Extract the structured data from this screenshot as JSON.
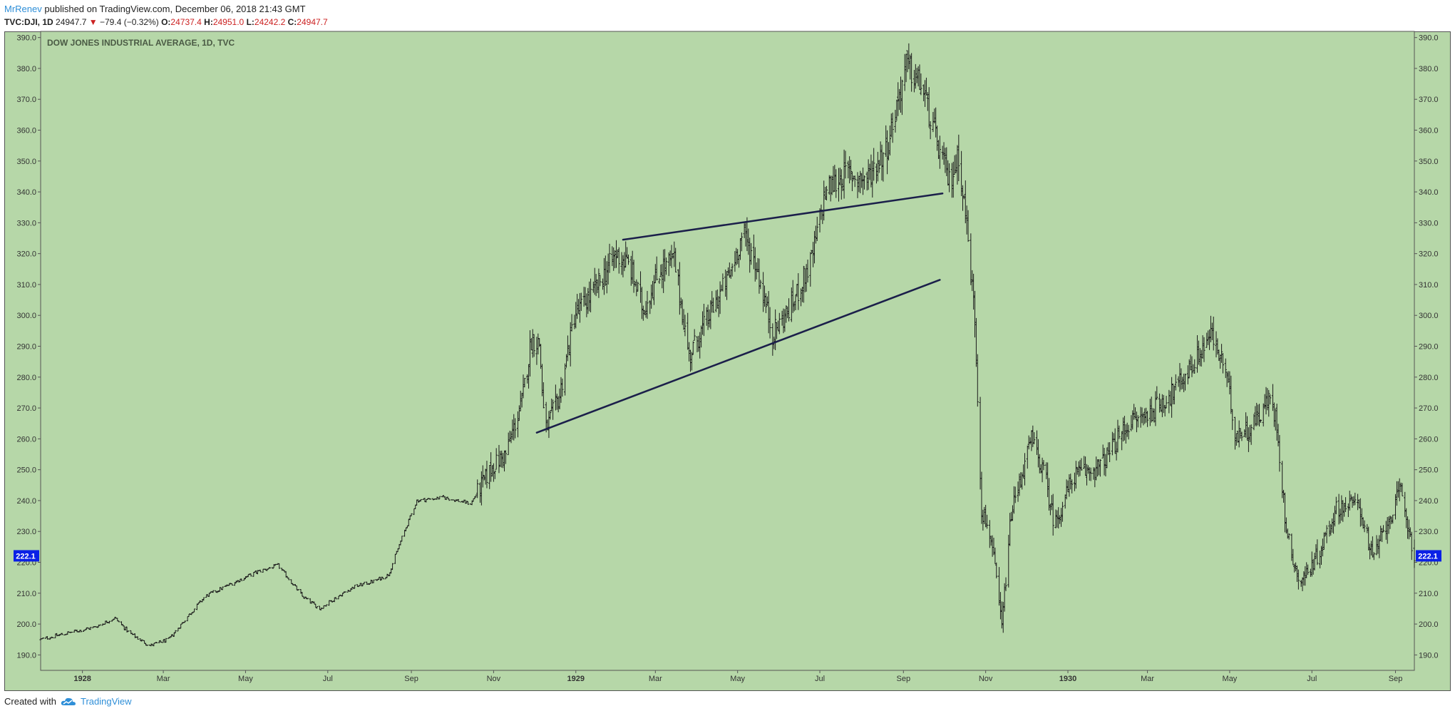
{
  "header": {
    "author": "MrRenev",
    "published_text": "published on TradingView.com, December 06, 2018 21:43 GMT",
    "symbol": "TVC:DJI, 1D",
    "last": "24947.7",
    "change": "−79.4 (−0.32%)",
    "o_label": "O:",
    "o_value": "24737.4",
    "h_label": "H:",
    "h_value": "24951.0",
    "l_label": "L:",
    "l_value": "24242.2",
    "c_label": "C:",
    "c_value": "24947.7"
  },
  "footer": {
    "created_with": "Created with",
    "brand": "TradingView"
  },
  "colors": {
    "plot_bg": "#b6d7a8",
    "bars": "#1a1a1a",
    "trendline": "#1b1f4a",
    "price_tag": "#0a20e6",
    "accent": "#2f8fd8",
    "down": "#cc2222"
  },
  "chart_data": {
    "type": "ohlc",
    "title": "DOW JONES INDUSTRIAL AVERAGE, 1D, TVC",
    "y_ticks": [
      "390.0",
      "380.0",
      "370.0",
      "360.0",
      "350.0",
      "340.0",
      "330.0",
      "320.0",
      "310.0",
      "300.0",
      "290.0",
      "280.0",
      "270.0",
      "260.0",
      "250.0",
      "240.0",
      "230.0",
      "220.0",
      "210.0",
      "200.0",
      "190.0"
    ],
    "y_range": [
      185,
      392
    ],
    "x_range": [
      "1927-12-01",
      "1930-09-15"
    ],
    "x_ticks": [
      {
        "label": "1928",
        "date": "1928-01-01",
        "bold": true
      },
      {
        "label": "Mar",
        "date": "1928-03-01"
      },
      {
        "label": "May",
        "date": "1928-05-01"
      },
      {
        "label": "Jul",
        "date": "1928-07-01"
      },
      {
        "label": "Sep",
        "date": "1928-09-01"
      },
      {
        "label": "Nov",
        "date": "1928-11-01"
      },
      {
        "label": "1929",
        "date": "1929-01-01",
        "bold": true
      },
      {
        "label": "Mar",
        "date": "1929-03-01"
      },
      {
        "label": "May",
        "date": "1929-05-01"
      },
      {
        "label": "Jul",
        "date": "1929-07-01"
      },
      {
        "label": "Sep",
        "date": "1929-09-01"
      },
      {
        "label": "Nov",
        "date": "1929-11-01"
      },
      {
        "label": "1930",
        "date": "1930-01-01",
        "bold": true
      },
      {
        "label": "Mar",
        "date": "1930-03-01"
      },
      {
        "label": "May",
        "date": "1930-05-01"
      },
      {
        "label": "Jul",
        "date": "1930-07-01"
      },
      {
        "label": "Sep",
        "date": "1930-09-01"
      }
    ],
    "last_price_label": "222.1",
    "last_price": 222.1,
    "close_path": [
      [
        "1927-12-01",
        195
      ],
      [
        "1927-12-20",
        197
      ],
      [
        "1928-01-10",
        199
      ],
      [
        "1928-01-25",
        202
      ],
      [
        "1928-02-05",
        197
      ],
      [
        "1928-02-20",
        193
      ],
      [
        "1928-03-05",
        195
      ],
      [
        "1928-03-20",
        203
      ],
      [
        "1928-04-01",
        209
      ],
      [
        "1928-04-20",
        213
      ],
      [
        "1928-05-10",
        217
      ],
      [
        "1928-05-25",
        219
      ],
      [
        "1928-06-05",
        213
      ],
      [
        "1928-06-12",
        209
      ],
      [
        "1928-06-25",
        205
      ],
      [
        "1928-07-05",
        208
      ],
      [
        "1928-07-20",
        212
      ],
      [
        "1928-08-05",
        214
      ],
      [
        "1928-08-15",
        216
      ],
      [
        "1928-08-25",
        228
      ],
      [
        "1928-09-05",
        240
      ],
      [
        "1928-09-25",
        241
      ],
      [
        "1928-10-15",
        239
      ],
      [
        "1928-10-31",
        251
      ],
      [
        "1928-11-10",
        255
      ],
      [
        "1928-11-22",
        272
      ],
      [
        "1928-11-29",
        292
      ],
      [
        "1928-12-05",
        291
      ],
      [
        "1928-12-09",
        262
      ],
      [
        "1928-12-20",
        274
      ],
      [
        "1928-12-31",
        300
      ],
      [
        "1929-01-15",
        308
      ],
      [
        "1929-01-31",
        320
      ],
      [
        "1929-02-10",
        316
      ],
      [
        "1929-02-20",
        302
      ],
      [
        "1929-03-05",
        315
      ],
      [
        "1929-03-15",
        318
      ],
      [
        "1929-03-26",
        287
      ],
      [
        "1929-04-10",
        300
      ],
      [
        "1929-04-25",
        313
      ],
      [
        "1929-05-05",
        327
      ],
      [
        "1929-05-15",
        316
      ],
      [
        "1929-05-27",
        294
      ],
      [
        "1929-06-10",
        303
      ],
      [
        "1929-06-25",
        318
      ],
      [
        "1929-07-05",
        340
      ],
      [
        "1929-07-20",
        346
      ],
      [
        "1929-08-05",
        344
      ],
      [
        "1929-08-20",
        355
      ],
      [
        "1929-09-03",
        381
      ],
      [
        "1929-09-15",
        374
      ],
      [
        "1929-09-25",
        357
      ],
      [
        "1929-10-05",
        343
      ],
      [
        "1929-10-12",
        352
      ],
      [
        "1929-10-18",
        329
      ],
      [
        "1929-10-24",
        299
      ],
      [
        "1929-10-29",
        237
      ],
      [
        "1929-11-05",
        228
      ],
      [
        "1929-11-13",
        199
      ],
      [
        "1929-11-20",
        236
      ],
      [
        "1929-12-05",
        260
      ],
      [
        "1929-12-15",
        248
      ],
      [
        "1929-12-22",
        232
      ],
      [
        "1930-01-05",
        248
      ],
      [
        "1930-01-25",
        251
      ],
      [
        "1930-02-15",
        265
      ],
      [
        "1930-03-01",
        268
      ],
      [
        "1930-03-20",
        275
      ],
      [
        "1930-04-05",
        285
      ],
      [
        "1930-04-17",
        294
      ],
      [
        "1930-04-28",
        282
      ],
      [
        "1930-05-05",
        262
      ],
      [
        "1930-05-15",
        263
      ],
      [
        "1930-05-31",
        273
      ],
      [
        "1930-06-05",
        265
      ],
      [
        "1930-06-12",
        230
      ],
      [
        "1930-06-22",
        213
      ],
      [
        "1930-07-05",
        222
      ],
      [
        "1930-07-20",
        238
      ],
      [
        "1930-08-05",
        239
      ],
      [
        "1930-08-15",
        221
      ],
      [
        "1930-08-25",
        232
      ],
      [
        "1930-09-05",
        243
      ],
      [
        "1930-09-15",
        222
      ]
    ],
    "trendlines": [
      {
        "from": [
          "1929-02-05",
          324.5
        ],
        "to": [
          "1929-09-30",
          339.5
        ]
      },
      {
        "from": [
          "1928-12-03",
          262
        ],
        "to": [
          "1929-09-28",
          311.5
        ]
      }
    ]
  }
}
